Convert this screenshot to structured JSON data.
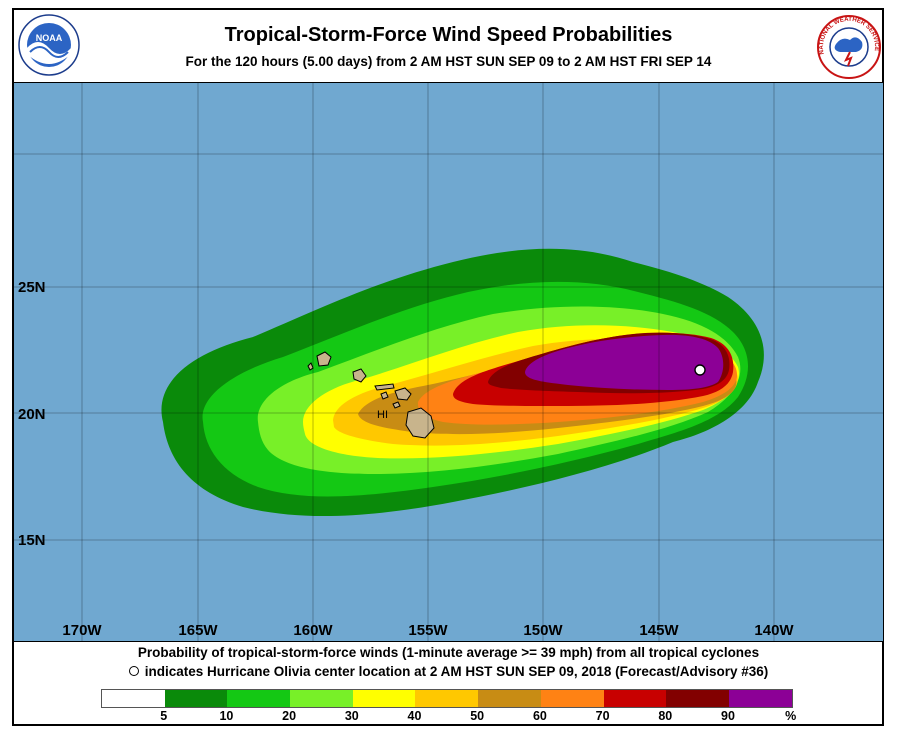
{
  "header": {
    "title": "Tropical-Storm-Force Wind Speed Probabilities",
    "subtitle": "For the 120 hours (5.00 days) from 2 AM HST SUN SEP 09 to 2 AM HST FRI SEP 14",
    "left_logo": "noaa-logo",
    "left_logo_text": "NOAA",
    "right_logo": "national-weather-service-logo",
    "right_logo_text": "NATIONAL WEATHER SERVICE"
  },
  "map": {
    "ocean_color": "#70a8d0",
    "land_color": "#c8b48c",
    "land_label": "HI",
    "lat_labels": [
      "25N",
      "20N",
      "15N"
    ],
    "lon_labels": [
      "170W",
      "165W",
      "160W",
      "155W",
      "150W",
      "145W",
      "140W"
    ],
    "storm_center_marker": "open-circle"
  },
  "notes": {
    "line1": "Probability of tropical-storm-force winds (1-minute average >= 39 mph) from all tropical cyclones",
    "line2": "indicates Hurricane Olivia center location at 2 AM HST SUN SEP 09, 2018 (Forecast/Advisory #36)"
  },
  "legend": {
    "colors": [
      "#ffffff",
      "#0a8a0a",
      "#14c814",
      "#78f028",
      "#ffff00",
      "#ffc800",
      "#c88c14",
      "#ff8214",
      "#c80000",
      "#820000",
      "#8c0096"
    ],
    "tick_labels": [
      "5",
      "10",
      "20",
      "30",
      "40",
      "50",
      "60",
      "70",
      "80",
      "90",
      "%"
    ]
  }
}
